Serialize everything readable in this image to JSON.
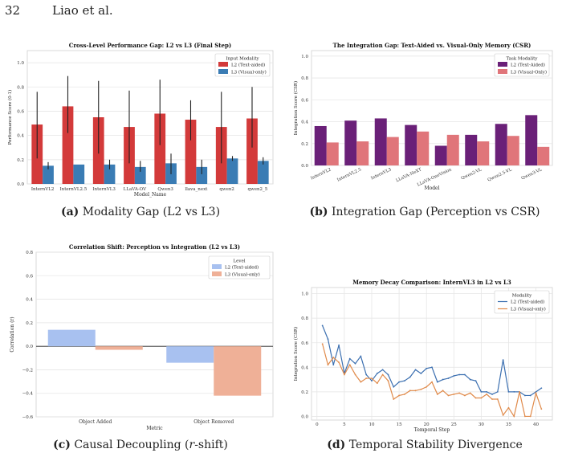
{
  "page": {
    "number": "32",
    "running_head": "Liao et al."
  },
  "chart_data": [
    {
      "id": "a",
      "type": "bar",
      "title": "Cross-Level Performance Gap: L2 vs L3 (Final Step)",
      "xlabel": "Model_Name",
      "ylabel": "Performance Score (0-1)",
      "ylim": [
        0,
        1.1
      ],
      "yticks": [
        "0.0",
        "0.2",
        "0.4",
        "0.6",
        "0.8",
        "1.0"
      ],
      "grid": true,
      "legend": {
        "title": "Input Modality",
        "position": "top-right"
      },
      "categories": [
        "InternVL2",
        "InternVL2.5",
        "InternVL3",
        "LLaVA-OV",
        "Qwen3",
        "llava_next",
        "qwen2",
        "qwen2_5"
      ],
      "series": [
        {
          "name": "L2 (Text-aided)",
          "color": "#d33a3a",
          "values": [
            0.49,
            0.64,
            0.55,
            0.47,
            0.58,
            0.53,
            0.47,
            0.54
          ],
          "err_low": [
            0.21,
            0.42,
            0.25,
            0.17,
            0.32,
            0.36,
            0.17,
            0.3
          ],
          "err_high": [
            0.76,
            0.89,
            0.85,
            0.77,
            0.86,
            0.69,
            0.76,
            0.8
          ]
        },
        {
          "name": "L3 (Visual-only)",
          "color": "#3a7cb4",
          "values": [
            0.15,
            0.16,
            0.16,
            0.14,
            0.17,
            0.14,
            0.21,
            0.19
          ],
          "err_low": [
            0.12,
            0.16,
            0.12,
            0.1,
            0.08,
            0.08,
            0.19,
            0.16
          ],
          "err_high": [
            0.18,
            0.16,
            0.2,
            0.19,
            0.25,
            0.2,
            0.23,
            0.22
          ]
        }
      ],
      "caption": {
        "label": "(a)",
        "text": "Modality Gap (L2 vs L3)"
      }
    },
    {
      "id": "b",
      "type": "bar",
      "title": "The Integration Gap: Text-Aided vs. Visual-Only Memory (CSR)",
      "xlabel": "Model",
      "ylabel": "Integration Score (CSR)",
      "ylim": [
        0,
        1.05
      ],
      "yticks": [
        "0.0",
        "0.2",
        "0.4",
        "0.6",
        "0.8",
        "1.0"
      ],
      "grid": true,
      "legend": {
        "title": "Task Modality",
        "position": "top-right"
      },
      "categories": [
        "InternVL2",
        "InternVL2.5",
        "InternVL3",
        "LLaVA-NeXT",
        "LLaVA-OneVision",
        "Qwen2-VL",
        "Qwen2.5-VL",
        "Qwen3-VL"
      ],
      "series": [
        {
          "name": "L2 (Text-Aided)",
          "color": "#6a2078",
          "values": [
            0.36,
            0.41,
            0.43,
            0.37,
            0.18,
            0.28,
            0.38,
            0.46
          ]
        },
        {
          "name": "L3 (Visual-Only)",
          "color": "#e0757a",
          "values": [
            0.21,
            0.22,
            0.26,
            0.31,
            0.28,
            0.22,
            0.27,
            0.17
          ]
        }
      ],
      "caption": {
        "label": "(b)",
        "text": "Integration Gap (Perception vs CSR)"
      }
    },
    {
      "id": "c",
      "type": "bar",
      "title": "Correlation Shift: Perception vs Integration (L2 vs L3)",
      "xlabel": "Metric",
      "ylabel": "Correlation (r)",
      "ylim": [
        -0.6,
        0.8
      ],
      "yticks": [
        "−0.6",
        "−0.4",
        "−0.2",
        "0.0",
        "0.2",
        "0.4",
        "0.6",
        "0.8"
      ],
      "grid": true,
      "legend": {
        "title": "Level",
        "position": "top-right"
      },
      "categories": [
        "Object Added",
        "Object Removed"
      ],
      "series": [
        {
          "name": "L2 (Text-aided)",
          "color": "#a8c1f0",
          "values": [
            0.14,
            -0.14
          ]
        },
        {
          "name": "L3 (Visual-only)",
          "color": "#efb097",
          "values": [
            -0.03,
            -0.42
          ]
        }
      ],
      "caption": {
        "label": "(c)",
        "text_before": "Causal Decoupling (",
        "italic": "r",
        "text_after": "-shift)"
      }
    },
    {
      "id": "d",
      "type": "line",
      "title": "Memory Decay Comparison: InternVL3 in L2 vs L3",
      "xlabel": "Temporal Step",
      "ylabel": "Integration Score (CSR)",
      "xlim": [
        -1,
        43
      ],
      "ylim": [
        -0.03,
        1.05
      ],
      "xticks": [
        "0",
        "5",
        "10",
        "15",
        "20",
        "25",
        "30",
        "35",
        "40"
      ],
      "yticks": [
        "0.0",
        "0.2",
        "0.4",
        "0.6",
        "0.8",
        "1.0"
      ],
      "grid": true,
      "legend": {
        "title": "Modality",
        "position": "top-right"
      },
      "x": [
        1,
        2,
        3,
        4,
        5,
        6,
        7,
        8,
        9,
        10,
        11,
        12,
        13,
        14,
        15,
        16,
        17,
        18,
        19,
        20,
        21,
        22,
        23,
        24,
        25,
        26,
        27,
        28,
        29,
        30,
        31,
        32,
        33,
        34,
        35,
        36,
        37,
        38,
        39,
        40,
        41
      ],
      "series": [
        {
          "name": "L2 (Text-aided)",
          "color": "#3b6fb0",
          "values": [
            0.74,
            0.63,
            0.42,
            0.58,
            0.35,
            0.47,
            0.43,
            0.49,
            0.34,
            0.29,
            0.35,
            0.38,
            0.34,
            0.24,
            0.28,
            0.29,
            0.32,
            0.38,
            0.35,
            0.39,
            0.4,
            0.28,
            0.3,
            0.31,
            0.33,
            0.34,
            0.34,
            0.3,
            0.29,
            0.2,
            0.2,
            0.18,
            0.2,
            0.46,
            0.2,
            0.2,
            0.2,
            0.17,
            0.17,
            0.2,
            0.23
          ]
        },
        {
          "name": "L3 (Visual-only)",
          "color": "#e08a4a",
          "values": [
            0.59,
            0.42,
            0.48,
            0.44,
            0.34,
            0.42,
            0.34,
            0.28,
            0.31,
            0.31,
            0.27,
            0.34,
            0.29,
            0.14,
            0.17,
            0.18,
            0.21,
            0.21,
            0.22,
            0.24,
            0.28,
            0.18,
            0.21,
            0.17,
            0.18,
            0.19,
            0.17,
            0.19,
            0.15,
            0.15,
            0.18,
            0.14,
            0.14,
            0.01,
            0.07,
            0.0,
            0.2,
            0.0,
            0.0,
            0.19,
            0.06
          ]
        }
      ],
      "caption": {
        "label": "(d)",
        "text": "Temporal Stability Divergence"
      }
    }
  ]
}
